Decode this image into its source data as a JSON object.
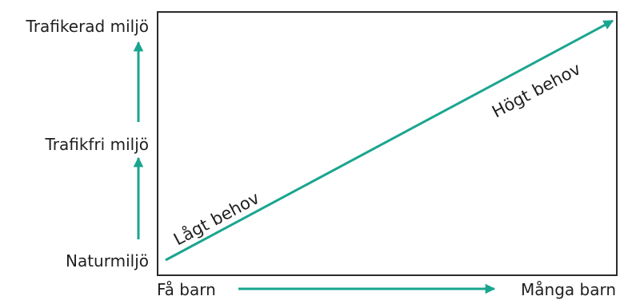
{
  "y_axis": {
    "levels": [
      "Naturmiljö",
      "Trafikfri miljö",
      "Trafikerad miljö"
    ]
  },
  "x_axis": {
    "start_label": "Få barn",
    "end_label": "Många barn"
  },
  "diagonal": {
    "low_label": "Lågt behov",
    "high_label": "Högt behov"
  },
  "colors": {
    "arrow": "#1aa58f",
    "frame": "#2b2b2b",
    "text": "#1f1f1f"
  }
}
